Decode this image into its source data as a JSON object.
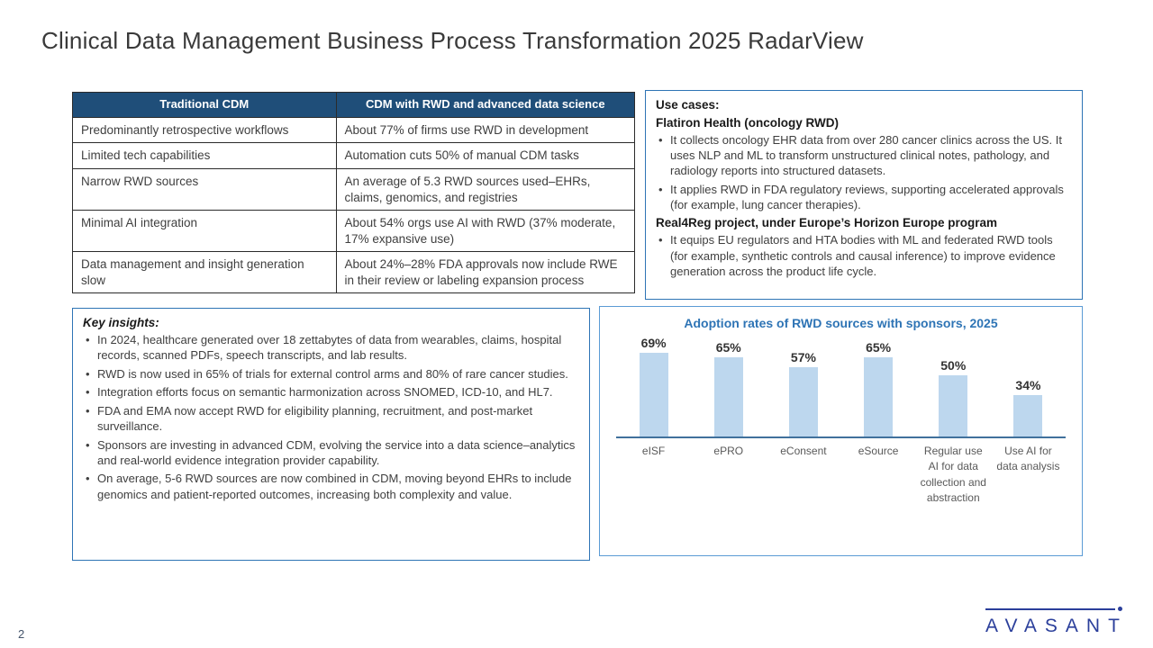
{
  "slide": {
    "title": "Clinical Data Management Business Process Transformation 2025 RadarView",
    "page_number": "2"
  },
  "comparison_table": {
    "headers": [
      "Traditional CDM",
      "CDM with RWD and advanced data science"
    ],
    "rows": [
      [
        "Predominantly retrospective workflows",
        "About 77% of firms use RWD in development"
      ],
      [
        "Limited tech capabilities",
        "Automation cuts 50% of manual CDM tasks"
      ],
      [
        "Narrow RWD sources",
        "An average of 5.3 RWD sources used–EHRs, claims, genomics, and registries"
      ],
      [
        "Minimal AI integration",
        "About 54% orgs use AI with RWD (37% moderate, 17% expansive use)"
      ],
      [
        "Data management and insight generation slow",
        "About 24%–28% FDA approvals now include RWE in their review or labeling expansion process"
      ]
    ]
  },
  "use_cases": {
    "heading": "Use cases:",
    "sections": [
      {
        "subheading": "Flatiron Health (oncology RWD)",
        "bullets": [
          "It collects oncology EHR data from over 280 cancer clinics across the US. It uses NLP and ML to transform unstructured clinical notes, pathology, and radiology reports into structured datasets.",
          "It applies RWD in FDA regulatory reviews, supporting accelerated approvals (for example, lung cancer therapies)."
        ]
      },
      {
        "subheading": "Real4Reg project, under Europe’s Horizon Europe program",
        "bullets": [
          "It equips EU regulators and HTA bodies with ML and federated RWD tools (for example, synthetic controls and causal inference) to improve evidence generation across the product life cycle."
        ]
      }
    ]
  },
  "key_insights": {
    "heading": "Key insights:",
    "bullets": [
      "In 2024, healthcare generated over 18 zettabytes of data from wearables, claims, hospital records, scanned PDFs, speech transcripts, and lab results.",
      "RWD is now used in 65% of trials for external control arms and 80% of rare cancer studies.",
      "Integration efforts focus on semantic harmonization across SNOMED, ICD-10, and HL7.",
      "FDA and EMA now accept RWD for eligibility planning, recruitment, and post-market surveillance.",
      "Sponsors are investing in advanced CDM, evolving the service into a data science–analytics and real-world evidence integration provider capability.",
      "On average, 5-6 RWD sources are now combined in CDM, moving beyond EHRs to include genomics and patient-reported outcomes, increasing both complexity and value."
    ]
  },
  "chart_data": {
    "type": "bar",
    "title": "Adoption rates of RWD sources with sponsors, 2025",
    "categories": [
      "eISF",
      "ePRO",
      "eConsent",
      "eSource",
      "Regular use AI for data collection and abstraction",
      "Use AI for data analysis"
    ],
    "values": [
      69,
      65,
      57,
      65,
      50,
      34
    ],
    "value_labels": [
      "69%",
      "65%",
      "57%",
      "65%",
      "50%",
      "34%"
    ],
    "ylim": [
      0,
      100
    ],
    "grid": false,
    "legend_position": "none",
    "bar_color": "#BDD7EE",
    "axis_line_color": "#41719C"
  },
  "logo": {
    "text": "AVASANT"
  },
  "colors": {
    "table_header_bg": "#1F4E79",
    "table_header_text": "#FFFFFF",
    "panel_border": "#2E74B5",
    "chart_box_border": "#5B9BD5",
    "chart_title": "#2E74B5",
    "body_text": "#3F3F3F",
    "logo_blue": "#2B3F9B"
  }
}
